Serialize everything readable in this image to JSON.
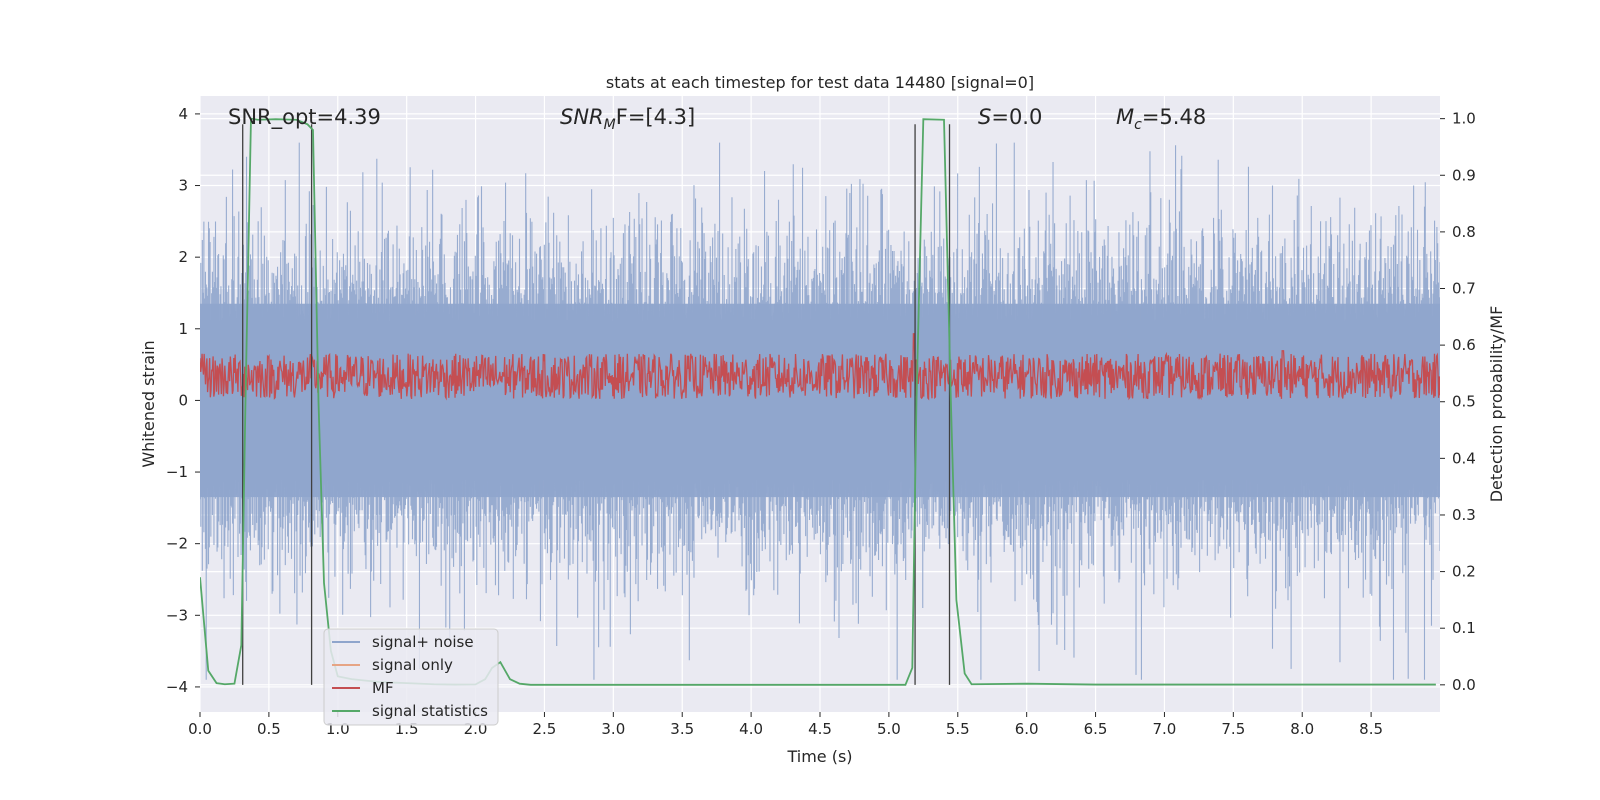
{
  "chart_data": {
    "type": "line",
    "title": "stats at each timestep for test data 14480 [signal=0]",
    "xlabel": "Time (s)",
    "ylabel": "Whitened strain",
    "ylabel_right": "Detection probability/MF",
    "xlim": [
      0,
      9.0
    ],
    "ylim": [
      -4.35,
      4.25
    ],
    "ylim_right": [
      -0.048,
      1.04
    ],
    "x_ticks": [
      0.0,
      0.5,
      1.0,
      1.5,
      2.0,
      2.5,
      3.0,
      3.5,
      4.0,
      4.5,
      5.0,
      5.5,
      6.0,
      6.5,
      7.0,
      7.5,
      8.0,
      8.5
    ],
    "x_tick_labels": [
      "0.0",
      "0.5",
      "1.0",
      "1.5",
      "2.0",
      "2.5",
      "3.0",
      "3.5",
      "4.0",
      "4.5",
      "5.0",
      "5.5",
      "6.0",
      "6.5",
      "7.0",
      "7.5",
      "8.0",
      "8.5"
    ],
    "y_ticks": [
      -4,
      -3,
      -2,
      -1,
      0,
      1,
      2,
      3,
      4
    ],
    "y_tick_labels": [
      "−4",
      "−3",
      "−2",
      "−1",
      "0",
      "1",
      "2",
      "3",
      "4"
    ],
    "y_ticks_right": [
      0.0,
      0.1,
      0.2,
      0.3,
      0.4,
      0.5,
      0.6,
      0.7,
      0.8,
      0.9,
      1.0
    ],
    "y_tick_labels_right": [
      "0.0",
      "0.1",
      "0.2",
      "0.3",
      "0.4",
      "0.5",
      "0.6",
      "0.7",
      "0.8",
      "0.9",
      "1.0"
    ],
    "annotations": {
      "snr_opt": "SNR_opt=4.39",
      "snr_mf_prefix": "SNR",
      "snr_mf_sub": "M",
      "snr_mf_suffix": "F=[4.3]",
      "s_label": "S",
      "s_value": "=0.0",
      "mc_label": "M",
      "mc_sub": "c",
      "mc_value": "=5.48"
    },
    "legend": {
      "placement": "lower-left",
      "entries": [
        "signal+ noise",
        "signal only",
        "MF",
        "signal statistics"
      ]
    },
    "colors": {
      "signal_noise": "#8fa5cc",
      "signal_only": "#e6a484",
      "mf": "#c44e52",
      "signal_statistics": "#55a868",
      "markers": "#404040",
      "background": "#eaeaf2",
      "grid": "#ffffff"
    },
    "grid": true,
    "noise_envelope": {
      "description": "whitened strain noise, roughly symmetric about 0",
      "typical_max": 2.0,
      "typical_min": -2.0,
      "peak_max": 3.6,
      "peak_min": -3.9
    },
    "mf_band": {
      "axis": "right",
      "center": 0.535,
      "low": 0.505,
      "high": 0.585,
      "spikes": [
        {
          "x": 5.18,
          "y": 0.62
        },
        {
          "x": 7.86,
          "y": 0.59
        }
      ]
    },
    "detection_markers": {
      "axis": "right",
      "events": [
        {
          "x": 0.31,
          "ymin": 0.0,
          "ymax": 0.99
        },
        {
          "x": 0.81,
          "ymin": 0.0,
          "ymax": 0.99
        },
        {
          "x": 5.19,
          "ymin": 0.0,
          "ymax": 0.99
        },
        {
          "x": 5.44,
          "ymin": 0.0,
          "ymax": 0.99
        }
      ]
    },
    "series": [
      {
        "name": "signal statistics",
        "axis": "right",
        "x": [
          0.0,
          0.06,
          0.12,
          0.18,
          0.25,
          0.3,
          0.33,
          0.37,
          0.42,
          0.55,
          0.7,
          0.78,
          0.82,
          0.86,
          0.9,
          0.95,
          1.0,
          1.1,
          1.3,
          1.5,
          1.7,
          1.85,
          2.0,
          2.07,
          2.12,
          2.18,
          2.25,
          2.32,
          2.4,
          2.6,
          3.0,
          3.5,
          4.0,
          4.5,
          5.0,
          5.12,
          5.17,
          5.2,
          5.25,
          5.4,
          5.45,
          5.49,
          5.55,
          5.6,
          6.0,
          6.5,
          7.0,
          7.5,
          8.0,
          8.5,
          8.97
        ],
        "y": [
          0.19,
          0.025,
          0.003,
          0.001,
          0.002,
          0.07,
          0.5,
          1.0,
          0.998,
          0.999,
          0.998,
          0.99,
          0.98,
          0.5,
          0.18,
          0.06,
          0.015,
          0.01,
          0.005,
          0.003,
          0.001,
          0.0005,
          0.0008,
          0.01,
          0.03,
          0.04,
          0.01,
          0.002,
          0.0,
          0.0,
          0.0,
          0.0,
          0.0,
          0.0,
          0.0,
          0.0,
          0.03,
          0.5,
          0.999,
          0.998,
          0.5,
          0.15,
          0.02,
          0.001,
          0.002,
          0.0005,
          0.0005,
          0.0005,
          0.0005,
          0.0005,
          0.0005
        ]
      }
    ]
  }
}
